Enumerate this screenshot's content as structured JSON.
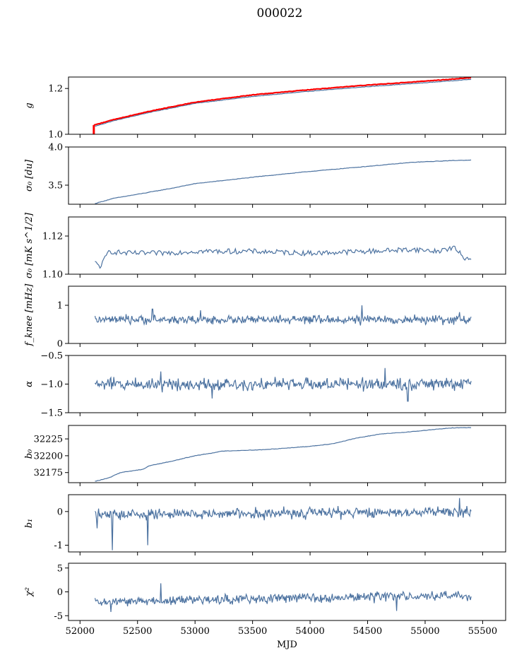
{
  "title": "000022",
  "chart_data": [
    {
      "type": "line",
      "ylabel": "g",
      "ylabel_style": "math",
      "ylim": [
        1.0,
        1.25
      ],
      "yticks": [
        1.0,
        1.2
      ],
      "xlim": [
        51900,
        55700
      ],
      "series": [
        {
          "name": "",
          "color": "#4c72a0",
          "x": [
            52130,
            52300,
            52600,
            53000,
            53500,
            54000,
            54500,
            55000,
            55400
          ],
          "values": [
            1.035,
            1.06,
            1.095,
            1.135,
            1.165,
            1.188,
            1.208,
            1.225,
            1.24
          ]
        },
        {
          "name": "",
          "color": "#ff0000",
          "x": [
            52120,
            52300,
            52600,
            53000,
            53500,
            54000,
            54500,
            55000,
            55400
          ],
          "values": [
            1.04,
            1.065,
            1.1,
            1.14,
            1.172,
            1.195,
            1.215,
            1.232,
            1.247
          ]
        }
      ]
    },
    {
      "type": "line",
      "ylabel": "σ₀ [du]",
      "ylabel_style": "math",
      "ylim": [
        3.25,
        4.0
      ],
      "yticks": [
        3.5,
        4.0
      ],
      "xlim": [
        51900,
        55700
      ],
      "series": [
        {
          "name": "",
          "color": "#4c72a0",
          "x": [
            52130,
            52300,
            52500,
            52800,
            53000,
            53300,
            53600,
            54000,
            54300,
            54600,
            54900,
            55200,
            55400
          ],
          "values": [
            3.26,
            3.33,
            3.38,
            3.46,
            3.52,
            3.57,
            3.62,
            3.68,
            3.72,
            3.76,
            3.8,
            3.82,
            3.83
          ]
        }
      ]
    },
    {
      "type": "line",
      "ylabel": "σ₀ [mK s^1/2]",
      "ylabel_style": "math",
      "ylim": [
        1.1,
        1.13
      ],
      "yticks": [
        1.1,
        1.12
      ],
      "xlim": [
        51900,
        55700
      ],
      "series": [
        {
          "name": "",
          "color": "#4c72a0",
          "x": [
            52130,
            52180,
            52250,
            52400,
            52700,
            53000,
            53500,
            54000,
            54500,
            54900,
            55100,
            55250,
            55350,
            55400
          ],
          "values": [
            1.106,
            1.104,
            1.112,
            1.111,
            1.111,
            1.112,
            1.112,
            1.111,
            1.112,
            1.113,
            1.112,
            1.114,
            1.108,
            1.109
          ]
        }
      ]
    },
    {
      "type": "line",
      "ylabel": "f_knee [mHz]",
      "ylabel_style": "math",
      "ylim": [
        0,
        1.5
      ],
      "yticks": [
        0,
        1
      ],
      "xlim": [
        51900,
        55700
      ],
      "series": [
        {
          "name": "",
          "color": "#4c72a0",
          "x": [
            52130,
            55400
          ],
          "values": [
            0.62,
            0.62
          ],
          "noise": 0.09,
          "spikes": [
            [
              52630,
              0.9
            ],
            [
              53050,
              0.87
            ],
            [
              54450,
              1.0
            ],
            [
              55300,
              0.82
            ]
          ]
        }
      ]
    },
    {
      "type": "line",
      "ylabel": "α",
      "ylabel_style": "math",
      "ylim": [
        -1.5,
        -0.5
      ],
      "yticks": [
        -1.5,
        -1.0,
        -0.5
      ],
      "xlim": [
        51900,
        55700
      ],
      "series": [
        {
          "name": "",
          "color": "#4c72a0",
          "x": [
            52130,
            55400
          ],
          "values": [
            -1.0,
            -1.0
          ],
          "noise": 0.09,
          "spikes": [
            [
              52700,
              -0.78
            ],
            [
              53150,
              -1.25
            ],
            [
              54650,
              -0.72
            ],
            [
              54850,
              -1.3
            ]
          ]
        }
      ]
    },
    {
      "type": "line",
      "ylabel": "b₀",
      "ylabel_style": "math",
      "ylim": [
        32160,
        32245
      ],
      "yticks": [
        32175,
        32200,
        32225
      ],
      "xlim": [
        51900,
        55700
      ],
      "series": [
        {
          "name": "",
          "color": "#4c72a0",
          "x": [
            52130,
            52250,
            52350,
            52550,
            52600,
            52800,
            53000,
            53250,
            53600,
            54000,
            54200,
            54400,
            54600,
            54900,
            55200,
            55400
          ],
          "values": [
            32162,
            32167,
            32175,
            32180,
            32185,
            32192,
            32200,
            32207,
            32209,
            32214,
            32218,
            32226,
            32232,
            32236,
            32241,
            32242
          ]
        }
      ]
    },
    {
      "type": "line",
      "ylabel": "b₁",
      "ylabel_style": "math",
      "ylim": [
        -1.2,
        0.5
      ],
      "yticks": [
        -1,
        0
      ],
      "xlim": [
        51900,
        55700
      ],
      "series": [
        {
          "name": "",
          "color": "#4c72a0",
          "x": [
            52130,
            55400
          ],
          "values": [
            -0.1,
            0.0
          ],
          "noise": 0.13,
          "spikes": [
            [
              52280,
              -1.15
            ],
            [
              52590,
              -1.0
            ],
            [
              52150,
              -0.5
            ],
            [
              55300,
              0.4
            ]
          ]
        }
      ]
    },
    {
      "type": "line",
      "ylabel": "χ²",
      "ylabel_style": "math",
      "xlabel": "MJD",
      "ylim": [
        -6,
        6
      ],
      "yticks": [
        -5,
        0,
        5
      ],
      "xlim": [
        51900,
        55700
      ],
      "xticks": [
        52000,
        52500,
        53000,
        53500,
        54000,
        54500,
        55000,
        55500
      ],
      "series": [
        {
          "name": "",
          "color": "#4c72a0",
          "x": [
            52130,
            53000,
            54000,
            55400
          ],
          "values": [
            -2.2,
            -1.7,
            -1.2,
            -0.8
          ],
          "noise": 0.8,
          "spikes": [
            [
              52270,
              -4.2
            ],
            [
              52700,
              1.8
            ],
            [
              54750,
              -4.0
            ]
          ]
        }
      ]
    }
  ]
}
